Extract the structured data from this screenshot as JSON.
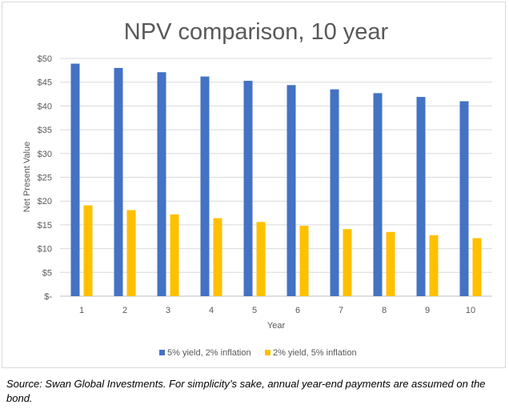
{
  "chart_data": {
    "type": "bar",
    "title": "NPV comparison, 10 year",
    "xlabel": "Year",
    "ylabel": "Net Present Value",
    "ylim": [
      0,
      50
    ],
    "y_ticks": [
      "$-",
      "$5",
      "$10",
      "$15",
      "$20",
      "$25",
      "$30",
      "$35",
      "$40",
      "$45",
      "$50"
    ],
    "categories": [
      "1",
      "2",
      "3",
      "4",
      "5",
      "6",
      "7",
      "8",
      "9",
      "10"
    ],
    "grid": true,
    "legend_position": "bottom",
    "series": [
      {
        "name": "5% yield, 2% inflation",
        "color": "#4472C4",
        "values": [
          48.9,
          48.0,
          47.1,
          46.2,
          45.3,
          44.4,
          43.5,
          42.7,
          41.9,
          41.0
        ]
      },
      {
        "name": "2% yield, 5% inflation",
        "color": "#FFC000",
        "values": [
          19.1,
          18.1,
          17.2,
          16.4,
          15.6,
          14.8,
          14.1,
          13.5,
          12.8,
          12.2
        ]
      }
    ]
  },
  "footnote": "Source: Swan Global Investments.  For simplicity’s sake, annual year-end payments are assumed on the bond."
}
